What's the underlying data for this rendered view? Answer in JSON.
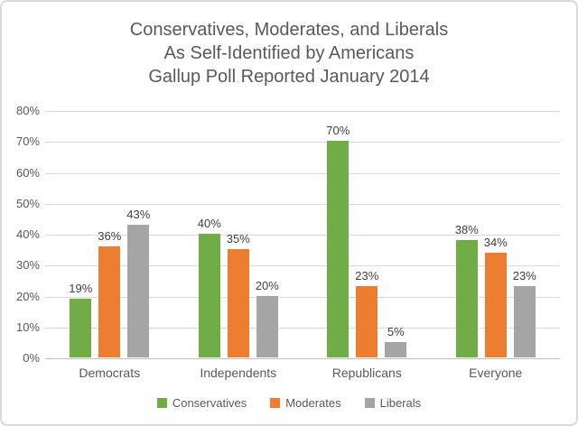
{
  "title": {
    "line1": "Conservatives, Moderates, and Liberals",
    "line2": "As Self-Identified by Americans",
    "line3": "Gallup Poll Reported January 2014"
  },
  "chart_data": {
    "type": "bar",
    "title": "Conservatives, Moderates, and Liberals As Self-Identified by Americans Gallup Poll Reported January 2014",
    "categories": [
      "Democrats",
      "Independents",
      "Republicans",
      "Everyone"
    ],
    "series": [
      {
        "name": "Conservatives",
        "color": "#70AD47",
        "values": [
          19,
          40,
          70,
          38
        ]
      },
      {
        "name": "Moderates",
        "color": "#ED7D31",
        "values": [
          36,
          35,
          23,
          34
        ]
      },
      {
        "name": "Liberals",
        "color": "#A5A5A5",
        "values": [
          43,
          20,
          5,
          23
        ]
      }
    ],
    "data_label_format": "{value}%",
    "yticks": [
      {
        "value": 0,
        "label": "0%"
      },
      {
        "value": 10,
        "label": "10%"
      },
      {
        "value": 20,
        "label": "20%"
      },
      {
        "value": 30,
        "label": "30%"
      },
      {
        "value": 40,
        "label": "40%"
      },
      {
        "value": 50,
        "label": "50%"
      },
      {
        "value": 60,
        "label": "60%"
      },
      {
        "value": 70,
        "label": "70%"
      },
      {
        "value": 80,
        "label": "80%"
      }
    ],
    "ylim": [
      0,
      80
    ],
    "grid": true,
    "legend_position": "bottom",
    "colors": {
      "title_text": "#595959",
      "axis_text": "#595959",
      "data_label_text": "#404040",
      "gridline": "#d9d9d9",
      "axis_line": "#bfbfbf"
    }
  }
}
